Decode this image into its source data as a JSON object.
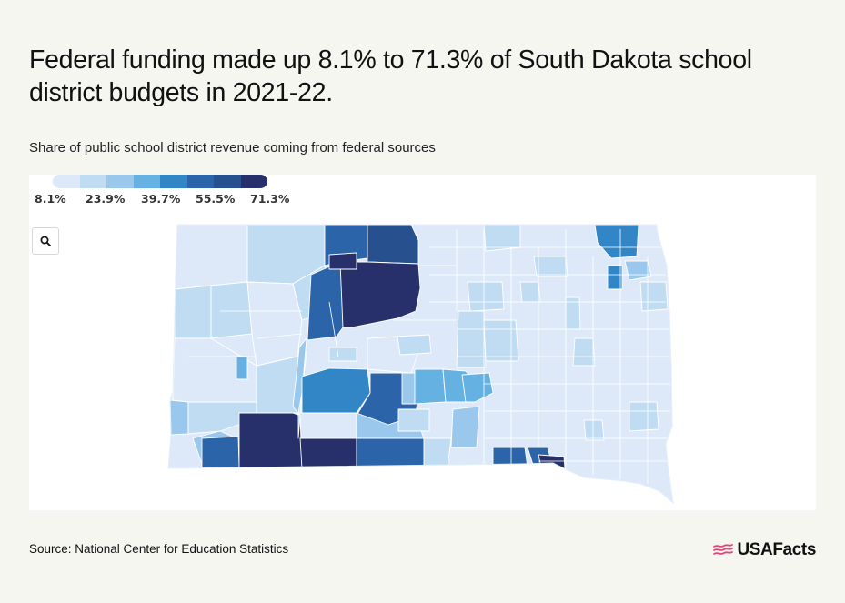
{
  "title": "Federal funding made up 8.1% to 71.3% of South Dakota school district budgets in 2021-22.",
  "subtitle": "Share of public school district revenue coming from federal sources",
  "legend": {
    "colors": [
      "#dde9f8",
      "#c0dcf3",
      "#99c8ec",
      "#64b1e2",
      "#3286c5",
      "#2b64a8",
      "#26508e",
      "#27306a"
    ],
    "labels": [
      "8.1%",
      "23.9%",
      "39.7%",
      "55.5%",
      "71.3%"
    ]
  },
  "zoom": {
    "icon": "magnifier-icon"
  },
  "map_data": {
    "region": "South Dakota school districts",
    "value_range": [
      8.1,
      71.3
    ],
    "unit": "%"
  },
  "source": "Source: National Center for Education Statistics",
  "brand": {
    "name": "USAFacts",
    "accent": "#e2457a",
    "icon": "flag-icon"
  }
}
